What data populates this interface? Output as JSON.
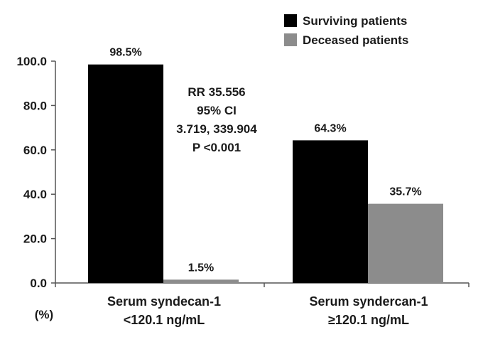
{
  "chart_data": {
    "type": "bar",
    "categories": [
      [
        "Serum syndecan-1",
        "<120.1 ng/mL"
      ],
      [
        "Serum syndercan-1",
        "≥120.1 ng/mL"
      ]
    ],
    "series": [
      {
        "name": "Surviving patients",
        "color": "#000000",
        "values": [
          98.5,
          64.3
        ],
        "labels": [
          "98.5%",
          "64.3%"
        ]
      },
      {
        "name": "Deceased patients",
        "color": "#8c8c8c",
        "values": [
          1.5,
          35.7
        ],
        "labels": [
          "1.5%",
          "35.7%"
        ]
      }
    ],
    "ylim": [
      0,
      100
    ],
    "yticks": [
      "0.0",
      "20.0",
      "40.0",
      "60.0",
      "80.0",
      "100.0"
    ],
    "ylabel": "(%)",
    "legend_position": "top-right",
    "annotation": [
      "RR 35.556",
      "95% CI",
      "3.719, 339.904",
      "P <0.001"
    ]
  }
}
